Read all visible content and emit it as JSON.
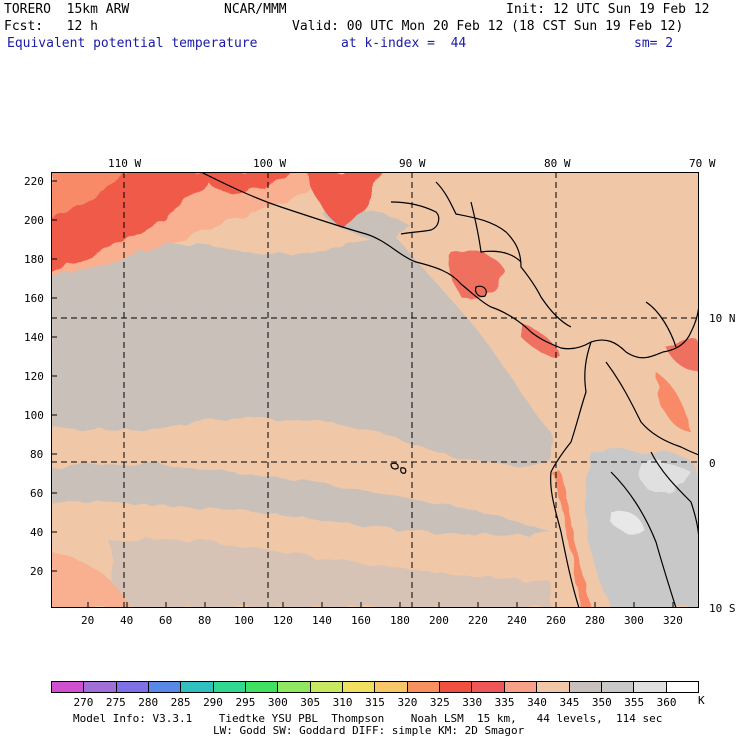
{
  "header": {
    "line1_left": "TORERO  15km ARW",
    "line1_mid": "NCAR/MMM",
    "line1_right": "Init: 12 UTC Sun 19 Feb 12",
    "line2_left": "Fcst:   12 h",
    "line2_right": "Valid: 00 UTC Mon 20 Feb 12 (18 CST Sun 19 Feb 12)",
    "line3_field": "Equivalent potential temperature",
    "line3_level": "at k-index =  44",
    "line3_smooth": "sm= 2"
  },
  "map": {
    "top_lon_labels": [
      "110 W",
      "100 W",
      "90 W",
      "80 W",
      "70 W"
    ],
    "right_lat_labels": [
      "10 N",
      "0",
      "10 S"
    ],
    "left_ticks": [
      "220",
      "200",
      "180",
      "160",
      "140",
      "120",
      "100",
      "80",
      "60",
      "40",
      "20"
    ],
    "bottom_ticks": [
      "20",
      "40",
      "60",
      "80",
      "100",
      "120",
      "140",
      "160",
      "180",
      "200",
      "220",
      "240",
      "260",
      "280",
      "300",
      "320"
    ]
  },
  "colorbar": {
    "labels": [
      "270",
      "275",
      "280",
      "285",
      "290",
      "295",
      "300",
      "305",
      "310",
      "315",
      "320",
      "325",
      "330",
      "335",
      "340",
      "345",
      "350",
      "355",
      "360"
    ],
    "unit": "K",
    "colors": [
      "#d050d0",
      "#a070d8",
      "#8070e8",
      "#5888e8",
      "#30c0c0",
      "#30d890",
      "#40e060",
      "#90e860",
      "#c8e860",
      "#f0e060",
      "#f8c868",
      "#f89060",
      "#f05040",
      "#f05858",
      "#f8a088",
      "#f0c8a8",
      "#c8c0bc",
      "#c8c8c8",
      "#e0e0e0",
      "#ffffff"
    ]
  },
  "footer": {
    "line1": "Model Info: V3.3.1    Tiedtke YSU PBL  Thompson    Noah LSM  15 km,   44 levels,  114 sec",
    "line2": "LW: Godd SW: Goddard DIFF: simple KM: 2D Smagor"
  }
}
